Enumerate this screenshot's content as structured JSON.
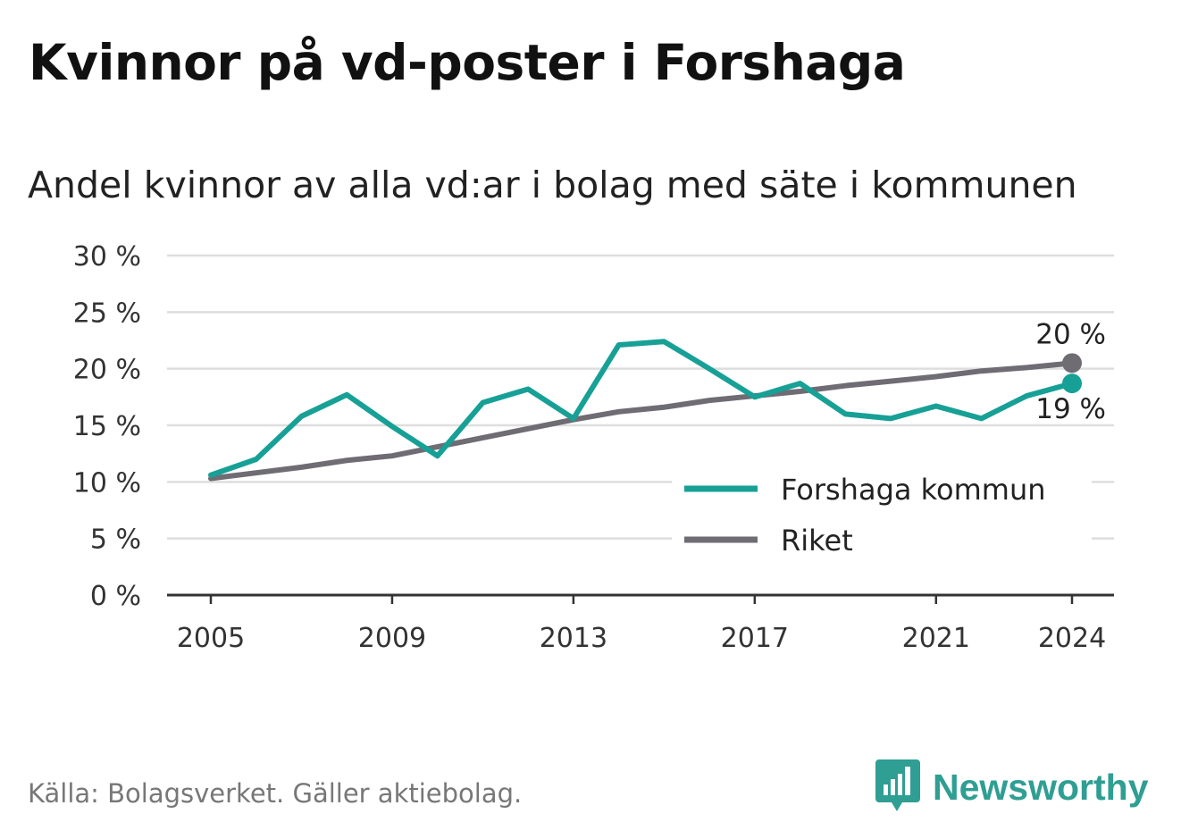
{
  "title": "Kvinnor på vd-poster i Forshaga",
  "subtitle": "Andel kvinnor av alla vd:ar i bolag med säte i kommunen",
  "source": "Källa: Bolagsverket. Gäller aktiebolag.",
  "brand": {
    "name": "Newsworthy",
    "icon": "newsworthy-logo-icon",
    "color": "#2f9e93"
  },
  "chart_data": {
    "type": "line",
    "x": [
      2005,
      2006,
      2007,
      2008,
      2009,
      2010,
      2011,
      2012,
      2013,
      2014,
      2015,
      2016,
      2017,
      2018,
      2019,
      2020,
      2021,
      2022,
      2023,
      2024
    ],
    "xticks": [
      2005,
      2009,
      2013,
      2017,
      2021,
      2024
    ],
    "yticks": [
      0,
      5,
      10,
      15,
      20,
      25,
      30
    ],
    "ytick_labels": [
      "0 %",
      "5 %",
      "10 %",
      "15 %",
      "20 %",
      "25 %",
      "30 %"
    ],
    "ylim": [
      0,
      30
    ],
    "grid": true,
    "legend_position": "bottom-right",
    "series": [
      {
        "name": "Forshaga kommun",
        "color": "#17a096",
        "values": [
          10.6,
          12.0,
          15.8,
          17.7,
          14.9,
          12.3,
          17.0,
          18.2,
          15.6,
          22.1,
          22.4,
          20.0,
          17.5,
          18.7,
          16.0,
          15.6,
          16.7,
          15.6,
          17.6,
          18.7
        ],
        "end_label": "19 %"
      },
      {
        "name": "Riket",
        "color": "#6f6c74",
        "values": [
          10.3,
          10.8,
          11.3,
          11.9,
          12.3,
          13.1,
          13.9,
          14.7,
          15.5,
          16.2,
          16.6,
          17.2,
          17.6,
          18.0,
          18.5,
          18.9,
          19.3,
          19.8,
          20.1,
          20.5
        ],
        "end_label": "20 %"
      }
    ]
  }
}
